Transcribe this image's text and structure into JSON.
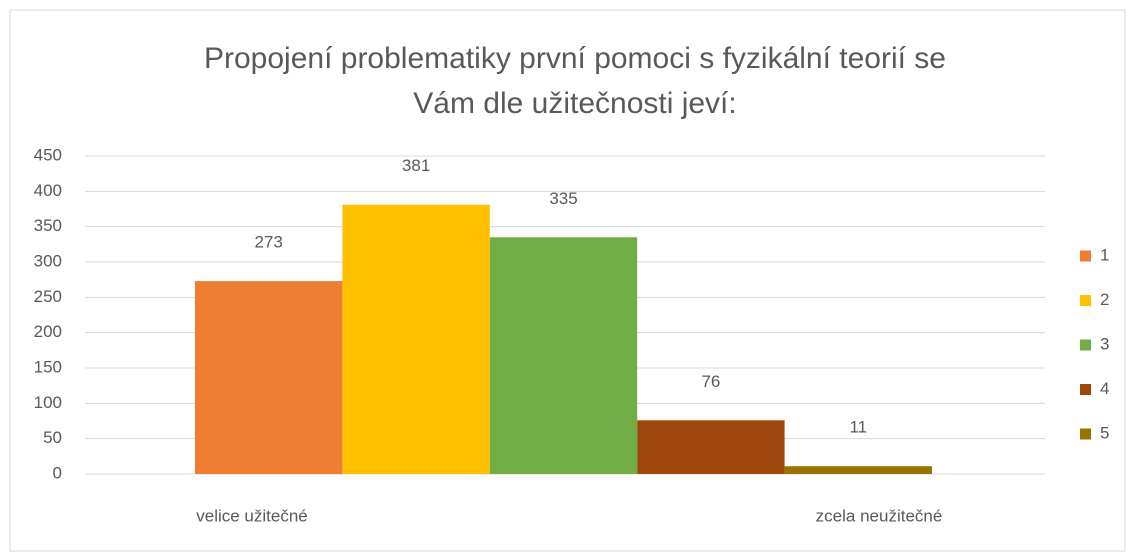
{
  "chart_data": {
    "type": "bar",
    "title": [
      "Propojení problematiky první pomoci s fyzikální teorií se",
      "Vám dle užitečnosti jeví:"
    ],
    "categories": [
      null
    ],
    "axis_annotations": [
      "velice užitečné",
      "zcela neužitečné"
    ],
    "series": [
      {
        "name": "1",
        "color": "#ED7D31",
        "values": [
          273
        ]
      },
      {
        "name": "2",
        "color": "#FFC000",
        "values": [
          381
        ]
      },
      {
        "name": "3",
        "color": "#70AD47",
        "values": [
          335
        ]
      },
      {
        "name": "4",
        "color": "#9E480E",
        "values": [
          76
        ]
      },
      {
        "name": "5",
        "color": "#997300",
        "values": [
          11
        ]
      }
    ],
    "ylim": [
      0,
      450
    ],
    "yticks": [
      0,
      50,
      100,
      150,
      200,
      250,
      300,
      350,
      400,
      450
    ],
    "grid": true,
    "legend": "right",
    "data_labels": true
  }
}
